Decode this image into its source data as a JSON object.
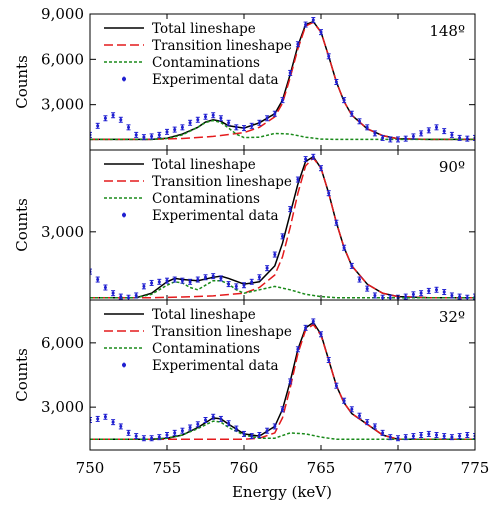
{
  "chart_data": {
    "type": "line",
    "shared_x_axis": {
      "label": "Energy (keV)",
      "range": [
        750,
        775
      ],
      "ticks": [
        750,
        755,
        760,
        765,
        770,
        775
      ],
      "tick_labels": [
        "750",
        "755",
        "760",
        "765",
        "770",
        "775"
      ]
    },
    "legend_entries": [
      "Total lineshape",
      "Transition lineshape",
      "Contaminations",
      "Experimental data"
    ],
    "colors": {
      "total": "#000000",
      "transition": "#e41a1c",
      "contaminations": "#1a8a1a",
      "experimental": "#1f1fd0"
    },
    "panels": [
      {
        "angle_label": "148º",
        "ylabel": "Counts",
        "ylim": [
          0,
          9000
        ],
        "y_ticks": [
          3000,
          6000,
          9000
        ],
        "y_tick_labels": [
          "3,000",
          "6,000",
          "9,000"
        ],
        "series": [
          {
            "name": "Total lineshape",
            "x": [
              750,
              752,
              754,
              755,
              756,
              757,
              757.5,
              758,
              758.5,
              759,
              760,
              761,
              762,
              762.5,
              763,
              763.5,
              764,
              764.5,
              765,
              765.5,
              766,
              766.5,
              767,
              768,
              769,
              770,
              772,
              775
            ],
            "y": [
              700,
              700,
              700,
              780,
              1050,
              1500,
              1850,
              2000,
              1900,
              1600,
              1450,
              1800,
              2400,
              3300,
              5000,
              6900,
              8300,
              8500,
              7800,
              6200,
              4500,
              3200,
              2300,
              1400,
              950,
              750,
              700,
              700
            ]
          },
          {
            "name": "Transition lineshape",
            "x": [
              750,
              754,
              756,
              758,
              760,
              761,
              762,
              762.5,
              763,
              763.5,
              764,
              764.5,
              765,
              765.5,
              766,
              766.5,
              767,
              768,
              769,
              770,
              772,
              775
            ],
            "y": [
              700,
              700,
              760,
              900,
              1150,
              1500,
              2200,
              3100,
              4800,
              6700,
              8200,
              8450,
              7800,
              6200,
              4500,
              3200,
              2300,
              1400,
              950,
              750,
              700,
              700
            ]
          },
          {
            "name": "Contaminations",
            "x": [
              750,
              754,
              755,
              756,
              757,
              757.5,
              758,
              758.5,
              759,
              759.5,
              760,
              761,
              762,
              763,
              764,
              765,
              766,
              768,
              775
            ],
            "y": [
              700,
              700,
              760,
              1000,
              1500,
              1820,
              1950,
              1820,
              1450,
              1050,
              820,
              850,
              1100,
              1050,
              850,
              720,
              700,
              700,
              700
            ]
          },
          {
            "name": "Experimental data",
            "x": [
              750,
              750.5,
              751,
              751.5,
              752,
              752.5,
              753,
              753.5,
              754,
              754.5,
              755,
              755.5,
              756,
              756.5,
              757,
              757.5,
              758,
              758.5,
              759,
              759.5,
              760,
              760.5,
              761,
              761.5,
              762,
              762.5,
              763,
              763.5,
              764,
              764.5,
              765,
              765.5,
              766,
              766.5,
              767,
              767.5,
              768,
              768.5,
              769,
              769.5,
              770,
              770.5,
              771,
              771.5,
              772,
              772.5,
              773,
              773.5,
              774,
              774.5,
              775
            ],
            "y": [
              1000,
              1600,
              2100,
              2300,
              2000,
              1500,
              1000,
              850,
              900,
              1000,
              1200,
              1350,
              1500,
              1800,
              2000,
              2200,
              2300,
              2100,
              1800,
              1500,
              1450,
              1600,
              1800,
              2100,
              2400,
              3300,
              5100,
              7000,
              8300,
              8600,
              7800,
              6200,
              4500,
              3300,
              2400,
              1900,
              1500,
              1100,
              800,
              700,
              700,
              750,
              900,
              1100,
              1300,
              1500,
              1250,
              1000,
              800,
              750,
              800
            ]
          }
        ]
      },
      {
        "angle_label": "90º",
        "ylabel": "Counts",
        "ylim": [
          0,
          6600
        ],
        "y_ticks": [
          3000
        ],
        "y_tick_labels": [
          "3,000"
        ],
        "series": [
          {
            "name": "Total lineshape",
            "x": [
              750,
              753,
              754,
              755,
              755.5,
              756,
              757,
              758,
              758.5,
              759,
              760,
              761,
              762,
              762.5,
              763,
              763.5,
              764,
              764.5,
              765,
              765.5,
              766,
              766.5,
              767,
              768,
              769,
              770,
              772,
              775
            ],
            "y": [
              100,
              100,
              300,
              800,
              950,
              900,
              850,
              1000,
              1050,
              950,
              700,
              800,
              1500,
              2500,
              3800,
              5100,
              6100,
              6300,
              5800,
              4700,
              3400,
              2300,
              1500,
              700,
              300,
              150,
              100,
              100
            ]
          },
          {
            "name": "Transition lineshape",
            "x": [
              750,
              754,
              756,
              758,
              760,
              761,
              762,
              762.5,
              763,
              763.5,
              764,
              764.5,
              765,
              765.5,
              766,
              766.5,
              767,
              768,
              769,
              770,
              772,
              775
            ],
            "y": [
              100,
              100,
              130,
              180,
              300,
              550,
              1100,
              1900,
              3200,
              4700,
              5900,
              6250,
              5800,
              4700,
              3400,
              2300,
              1500,
              700,
              300,
              150,
              100,
              100
            ]
          },
          {
            "name": "Contaminations",
            "x": [
              750,
              753,
              754,
              755,
              755.5,
              756,
              756.5,
              757,
              757.5,
              758,
              758.5,
              759,
              759.5,
              760,
              761,
              762,
              763,
              764,
              765,
              766,
              768,
              775
            ],
            "y": [
              100,
              100,
              250,
              650,
              800,
              750,
              550,
              450,
              650,
              850,
              850,
              700,
              450,
              300,
              450,
              600,
              450,
              250,
              150,
              100,
              100,
              100
            ]
          },
          {
            "name": "Experimental data",
            "x": [
              750,
              750.5,
              751,
              751.5,
              752,
              752.5,
              753,
              753.5,
              754,
              754.5,
              755,
              755.5,
              756,
              756.5,
              757,
              757.5,
              758,
              758.5,
              759,
              759.5,
              760,
              760.5,
              761,
              761.5,
              762,
              762.5,
              763,
              763.5,
              764,
              764.5,
              765,
              765.5,
              766,
              766.5,
              767,
              767.5,
              768,
              768.5,
              769,
              769.5,
              770,
              770.5,
              771,
              771.5,
              772,
              772.5,
              773,
              773.5,
              774,
              774.5,
              775
            ],
            "y": [
              1250,
              900,
              550,
              300,
              150,
              100,
              200,
              600,
              750,
              800,
              850,
              900,
              850,
              800,
              900,
              1000,
              1050,
              950,
              700,
              600,
              650,
              800,
              1000,
              1400,
              2000,
              2800,
              4000,
              5300,
              6200,
              6300,
              5800,
              4700,
              3400,
              2300,
              1500,
              900,
              500,
              200,
              100,
              100,
              100,
              150,
              250,
              300,
              400,
              450,
              350,
              200,
              150,
              100,
              150
            ]
          }
        ]
      },
      {
        "angle_label": "32º",
        "ylabel": "Counts",
        "ylim": [
          1000,
          8000
        ],
        "y_ticks": [
          3000,
          6000
        ],
        "y_tick_labels": [
          "3,000",
          "6,000"
        ],
        "series": [
          {
            "name": "Total lineshape",
            "x": [
              750,
              754,
              755,
              756,
              757,
              758,
              758.5,
              759,
              760,
              761,
              762,
              762.5,
              763,
              763.5,
              764,
              764.5,
              765,
              765.5,
              766,
              766.5,
              767,
              768,
              769,
              770,
              772,
              775
            ],
            "y": [
              1500,
              1500,
              1550,
              1700,
              2050,
              2500,
              2450,
              2200,
              1750,
              1650,
              2100,
              2900,
              4200,
              5700,
              6700,
              6950,
              6400,
              5200,
              4000,
              3200,
              2700,
              2200,
              1700,
              1500,
              1500,
              1500
            ]
          },
          {
            "name": "Transition lineshape",
            "x": [
              750,
              758,
              760,
              761,
              762,
              762.5,
              763,
              763.5,
              764,
              764.5,
              765,
              765.5,
              766,
              766.5,
              767,
              768,
              769,
              770,
              772,
              775
            ],
            "y": [
              1500,
              1500,
              1500,
              1550,
              1800,
              2500,
              3900,
              5500,
              6600,
              6850,
              6350,
              5200,
              4000,
              3200,
              2700,
              2200,
              1700,
              1500,
              1500,
              1500
            ]
          },
          {
            "name": "Contaminations",
            "x": [
              750,
              754,
              755,
              756,
              757,
              758,
              758.5,
              759,
              760,
              761,
              762,
              763,
              764,
              765,
              766,
              768,
              775
            ],
            "y": [
              1500,
              1500,
              1550,
              1700,
              2000,
              2350,
              2300,
              2050,
              1700,
              1550,
              1550,
              1800,
              1750,
              1600,
              1500,
              1500,
              1500
            ]
          },
          {
            "name": "Experimental data",
            "x": [
              750,
              750.5,
              751,
              751.5,
              752,
              752.5,
              753,
              753.5,
              754,
              754.5,
              755,
              755.5,
              756,
              756.5,
              757,
              757.5,
              758,
              758.5,
              759,
              759.5,
              760,
              760.5,
              761,
              761.5,
              762,
              762.5,
              763,
              763.5,
              764,
              764.5,
              765,
              765.5,
              766,
              766.5,
              767,
              767.5,
              768,
              768.5,
              769,
              769.5,
              770,
              770.5,
              771,
              771.5,
              772,
              772.5,
              773,
              773.5,
              774,
              774.5,
              775
            ],
            "y": [
              2400,
              2450,
              2550,
              2300,
              2100,
              1800,
              1650,
              1550,
              1550,
              1600,
              1700,
              1800,
              1900,
              2050,
              2200,
              2400,
              2550,
              2450,
              2250,
              2000,
              1750,
              1650,
              1700,
              1900,
              2100,
              2900,
              4200,
              5700,
              6700,
              7000,
              6400,
              5200,
              4000,
              3300,
              2900,
              2600,
              2300,
              2100,
              1800,
              1600,
              1550,
              1600,
              1650,
              1700,
              1750,
              1700,
              1650,
              1600,
              1650,
              1700,
              1650
            ]
          }
        ]
      }
    ]
  }
}
